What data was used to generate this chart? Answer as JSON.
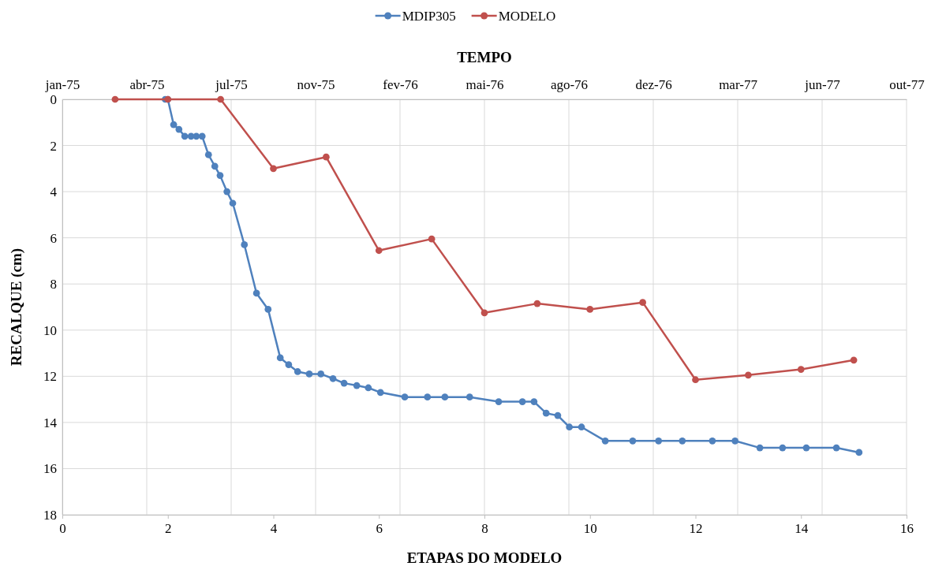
{
  "chart_data": {
    "type": "line",
    "xlabel": "ETAPAS DO MODELO",
    "ylabel": "RECALQUE (cm)",
    "x2label": "TEMPO",
    "xlim": [
      0,
      16
    ],
    "xticks": [
      0,
      2,
      4,
      6,
      8,
      10,
      12,
      14,
      16
    ],
    "ylim": [
      18,
      0
    ],
    "yticks": [
      0,
      2,
      4,
      6,
      8,
      10,
      12,
      14,
      16,
      18
    ],
    "x2lim": [
      "1975-01-06",
      "1977-10-02"
    ],
    "x2ticks": [
      {
        "value": "1975-01-06",
        "label": "jan-75"
      },
      {
        "value": "1975-04-16",
        "label": "abr-75"
      },
      {
        "value": "1975-07-25",
        "label": "jul-75"
      },
      {
        "value": "1975-11-02",
        "label": "nov-75"
      },
      {
        "value": "1976-02-10",
        "label": "fev-76"
      },
      {
        "value": "1976-05-20",
        "label": "mai-76"
      },
      {
        "value": "1976-08-28",
        "label": "ago-76"
      },
      {
        "value": "1976-12-06",
        "label": "dez-76"
      },
      {
        "value": "1977-03-16",
        "label": "mar-77"
      },
      {
        "value": "1977-06-24",
        "label": "jun-77"
      },
      {
        "value": "1977-10-02",
        "label": "out-77"
      }
    ],
    "grid": true,
    "legend": "top",
    "marker": "circle",
    "line_style": "solid",
    "series": [
      {
        "name": "MDIP305",
        "color": "#4f81bd",
        "x": [
          1.95,
          2.0,
          2.11,
          2.21,
          2.32,
          2.44,
          2.54,
          2.65,
          2.77,
          2.89,
          2.99,
          3.12,
          3.23,
          3.45,
          3.68,
          3.9,
          4.13,
          4.29,
          4.46,
          4.68,
          4.9,
          5.13,
          5.34,
          5.58,
          5.8,
          6.03,
          6.49,
          6.92,
          7.25,
          7.72,
          8.27,
          8.72,
          8.94,
          9.17,
          9.39,
          9.61,
          9.84,
          10.29,
          10.81,
          11.3,
          11.75,
          12.32,
          12.75,
          13.22,
          13.65,
          14.1,
          14.67,
          15.1
        ],
        "values": [
          0,
          0,
          1.1,
          1.3,
          1.6,
          1.6,
          1.6,
          1.6,
          2.4,
          2.9,
          3.3,
          4.0,
          4.5,
          6.3,
          8.4,
          9.1,
          11.2,
          11.5,
          11.8,
          11.9,
          11.9,
          12.1,
          12.3,
          12.4,
          12.5,
          12.7,
          12.9,
          12.9,
          12.9,
          12.9,
          13.1,
          13.1,
          13.1,
          13.6,
          13.7,
          14.2,
          14.2,
          14.8,
          14.8,
          14.8,
          14.8,
          14.8,
          14.8,
          15.1,
          15.1,
          15.1,
          15.1,
          15.3
        ]
      },
      {
        "name": "MODELO",
        "color": "#c0504d",
        "x": [
          1,
          2,
          3,
          4,
          5,
          6,
          7,
          8,
          9,
          10,
          11,
          12,
          13,
          14,
          15
        ],
        "values": [
          0,
          0,
          0,
          3.0,
          2.5,
          6.55,
          6.05,
          9.25,
          8.85,
          9.1,
          8.8,
          12.15,
          11.95,
          11.7,
          11.3
        ]
      }
    ]
  }
}
